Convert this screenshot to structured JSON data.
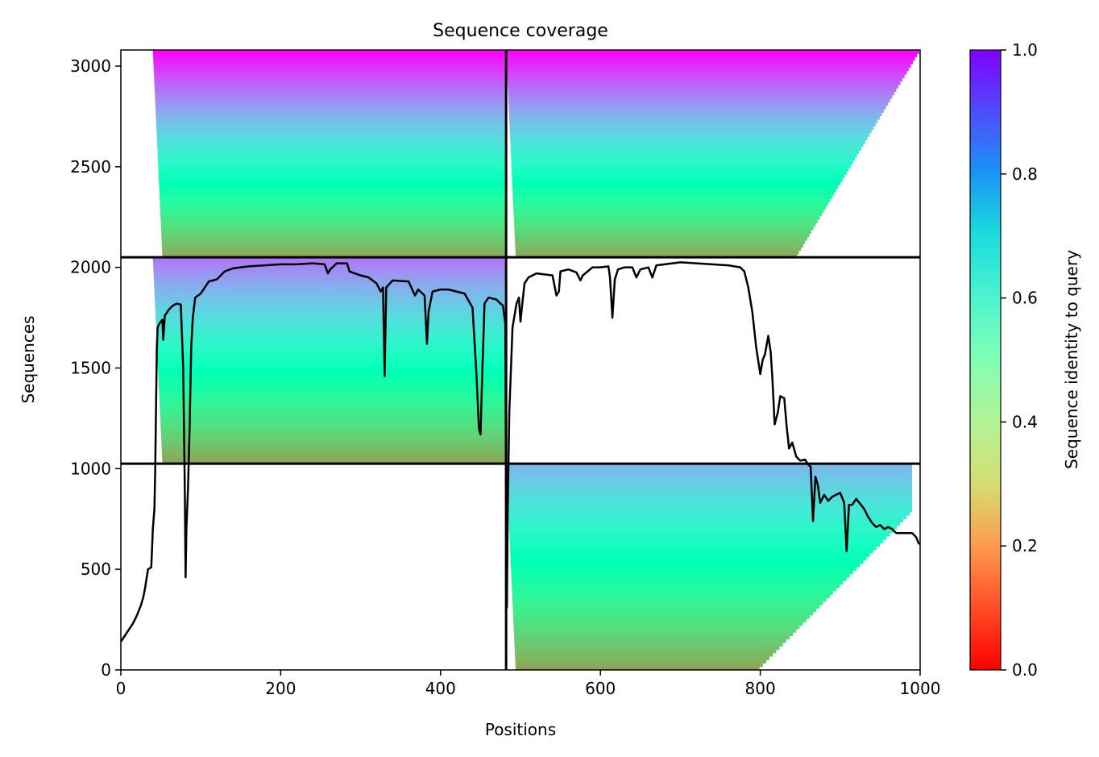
{
  "chart_data": {
    "type": "heatmap",
    "title": "Sequence coverage",
    "xlabel": "Positions",
    "ylabel": "Sequences",
    "xlim": [
      0,
      1000
    ],
    "ylim": [
      0,
      3080
    ],
    "xticks": [
      0,
      200,
      400,
      600,
      800,
      1000
    ],
    "yticks": [
      0,
      500,
      1000,
      1500,
      2000,
      2500,
      3000
    ],
    "colorbar": {
      "label": "Sequence identity to query",
      "range": [
        0,
        1
      ],
      "ticks": [
        "0.0",
        "0.2",
        "0.4",
        "0.6",
        "0.8",
        "1.0"
      ],
      "colormap": "rainbow_r"
    },
    "chain_boundaries": {
      "positions": [
        482
      ],
      "sequences": [
        1025,
        2050
      ]
    },
    "msa_blocks": [
      {
        "x": [
          0,
          482
        ],
        "y": [
          2050,
          3080
        ],
        "identity_range": [
          0.22,
          1.0
        ],
        "start_pos": 40,
        "end_pos": 482
      },
      {
        "x": [
          482,
          1000
        ],
        "y": [
          2050,
          3080
        ],
        "identity_range": [
          0.22,
          1.0
        ],
        "start_pos": 482,
        "end_pos": 1000
      },
      {
        "x": [
          0,
          482
        ],
        "y": [
          1025,
          2050
        ],
        "identity_range": [
          0.22,
          0.85
        ],
        "start_pos": 40,
        "end_pos": 482
      },
      {
        "x": [
          482,
          1000
        ],
        "y": [
          0,
          1025
        ],
        "identity_range": [
          0.22,
          0.75
        ],
        "start_pos": 482,
        "end_pos": 990
      }
    ],
    "coverage_line": {
      "color": "#000000",
      "points": [
        [
          0,
          140
        ],
        [
          5,
          170
        ],
        [
          10,
          200
        ],
        [
          15,
          230
        ],
        [
          20,
          270
        ],
        [
          25,
          320
        ],
        [
          28,
          360
        ],
        [
          30,
          400
        ],
        [
          32,
          450
        ],
        [
          34,
          500
        ],
        [
          38,
          510
        ],
        [
          39,
          600
        ],
        [
          40,
          700
        ],
        [
          42,
          800
        ],
        [
          43,
          1000
        ],
        [
          44,
          1300
        ],
        [
          45,
          1600
        ],
        [
          46,
          1700
        ],
        [
          48,
          1720
        ],
        [
          52,
          1740
        ],
        [
          53,
          1640
        ],
        [
          55,
          1760
        ],
        [
          60,
          1790
        ],
        [
          65,
          1810
        ],
        [
          70,
          1820
        ],
        [
          75,
          1815
        ],
        [
          78,
          1500
        ],
        [
          80,
          900
        ],
        [
          81,
          460
        ],
        [
          82,
          700
        ],
        [
          84,
          900
        ],
        [
          86,
          1200
        ],
        [
          88,
          1600
        ],
        [
          90,
          1750
        ],
        [
          93,
          1850
        ],
        [
          100,
          1870
        ],
        [
          110,
          1930
        ],
        [
          120,
          1940
        ],
        [
          130,
          1980
        ],
        [
          140,
          1995
        ],
        [
          150,
          2000
        ],
        [
          160,
          2005
        ],
        [
          180,
          2010
        ],
        [
          200,
          2015
        ],
        [
          220,
          2015
        ],
        [
          240,
          2020
        ],
        [
          255,
          2015
        ],
        [
          259,
          1970
        ],
        [
          262,
          1990
        ],
        [
          270,
          2020
        ],
        [
          283,
          2020
        ],
        [
          286,
          1980
        ],
        [
          300,
          1960
        ],
        [
          310,
          1950
        ],
        [
          320,
          1920
        ],
        [
          325,
          1880
        ],
        [
          328,
          1900
        ],
        [
          330,
          1460
        ],
        [
          332,
          1900
        ],
        [
          340,
          1935
        ],
        [
          360,
          1930
        ],
        [
          368,
          1860
        ],
        [
          372,
          1890
        ],
        [
          380,
          1860
        ],
        [
          383,
          1620
        ],
        [
          385,
          1780
        ],
        [
          390,
          1880
        ],
        [
          400,
          1890
        ],
        [
          410,
          1890
        ],
        [
          420,
          1880
        ],
        [
          430,
          1870
        ],
        [
          440,
          1800
        ],
        [
          445,
          1460
        ],
        [
          448,
          1200
        ],
        [
          450,
          1170
        ],
        [
          452,
          1450
        ],
        [
          455,
          1820
        ],
        [
          460,
          1850
        ],
        [
          470,
          1840
        ],
        [
          475,
          1820
        ],
        [
          478,
          1810
        ],
        [
          481,
          1720
        ],
        [
          482,
          800
        ],
        [
          483,
          310
        ],
        [
          484,
          800
        ],
        [
          486,
          1280
        ],
        [
          490,
          1700
        ],
        [
          495,
          1820
        ],
        [
          498,
          1850
        ],
        [
          500,
          1730
        ],
        [
          502,
          1810
        ],
        [
          505,
          1920
        ],
        [
          510,
          1950
        ],
        [
          520,
          1970
        ],
        [
          530,
          1965
        ],
        [
          540,
          1960
        ],
        [
          545,
          1860
        ],
        [
          548,
          1880
        ],
        [
          550,
          1980
        ],
        [
          560,
          1990
        ],
        [
          570,
          1975
        ],
        [
          575,
          1935
        ],
        [
          578,
          1960
        ],
        [
          590,
          2000
        ],
        [
          600,
          2000
        ],
        [
          610,
          2005
        ],
        [
          612,
          1950
        ],
        [
          615,
          1750
        ],
        [
          618,
          1940
        ],
        [
          622,
          1990
        ],
        [
          630,
          2000
        ],
        [
          640,
          2000
        ],
        [
          645,
          1950
        ],
        [
          650,
          1990
        ],
        [
          660,
          2000
        ],
        [
          665,
          1950
        ],
        [
          670,
          2010
        ],
        [
          680,
          2015
        ],
        [
          700,
          2025
        ],
        [
          720,
          2020
        ],
        [
          740,
          2015
        ],
        [
          760,
          2010
        ],
        [
          775,
          2000
        ],
        [
          780,
          1980
        ],
        [
          785,
          1900
        ],
        [
          790,
          1780
        ],
        [
          795,
          1600
        ],
        [
          800,
          1470
        ],
        [
          803,
          1540
        ],
        [
          806,
          1570
        ],
        [
          810,
          1660
        ],
        [
          813,
          1580
        ],
        [
          815,
          1460
        ],
        [
          818,
          1220
        ],
        [
          822,
          1280
        ],
        [
          825,
          1360
        ],
        [
          830,
          1350
        ],
        [
          833,
          1210
        ],
        [
          836,
          1100
        ],
        [
          840,
          1130
        ],
        [
          845,
          1060
        ],
        [
          850,
          1040
        ],
        [
          856,
          1045
        ],
        [
          860,
          1020
        ],
        [
          863,
          1010
        ],
        [
          866,
          740
        ],
        [
          869,
          960
        ],
        [
          872,
          920
        ],
        [
          875,
          830
        ],
        [
          880,
          870
        ],
        [
          885,
          840
        ],
        [
          890,
          860
        ],
        [
          895,
          870
        ],
        [
          900,
          880
        ],
        [
          905,
          830
        ],
        [
          908,
          590
        ],
        [
          911,
          820
        ],
        [
          915,
          820
        ],
        [
          920,
          850
        ],
        [
          930,
          800
        ],
        [
          935,
          760
        ],
        [
          940,
          730
        ],
        [
          945,
          710
        ],
        [
          950,
          720
        ],
        [
          955,
          700
        ],
        [
          960,
          710
        ],
        [
          965,
          700
        ],
        [
          970,
          680
        ],
        [
          980,
          680
        ],
        [
          990,
          680
        ],
        [
          995,
          660
        ],
        [
          998,
          630
        ],
        [
          1000,
          625
        ]
      ]
    }
  }
}
